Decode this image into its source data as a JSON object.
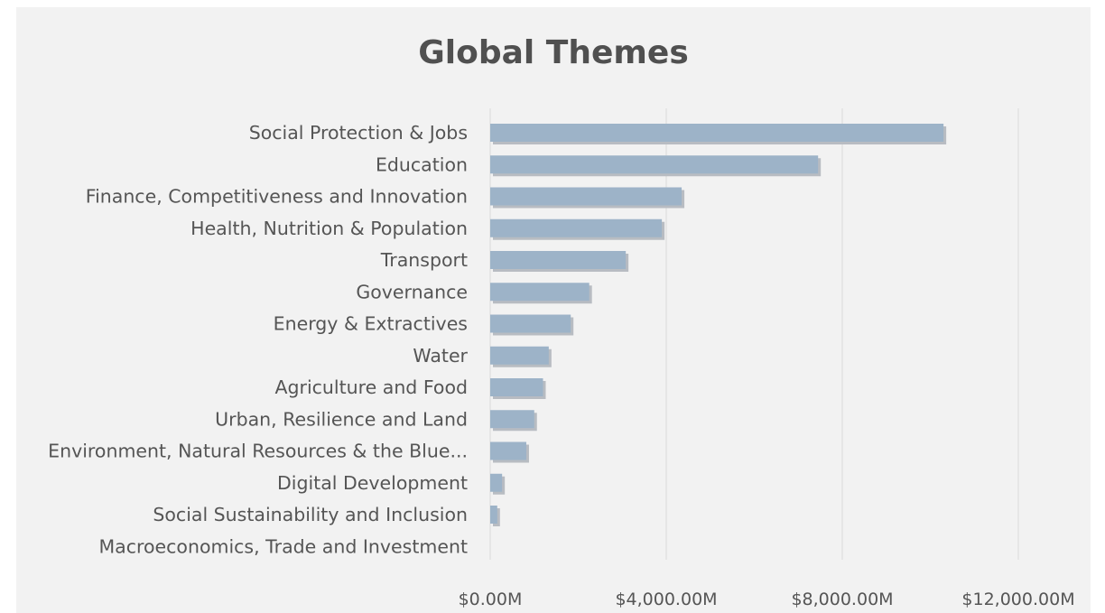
{
  "chart_data": {
    "type": "bar",
    "orientation": "horizontal",
    "title": "Global Themes",
    "xlabel": "",
    "ylabel": "",
    "xlim": [
      0,
      13000
    ],
    "x_ticks": [
      0,
      4000,
      8000,
      12000
    ],
    "x_tick_labels": [
      "$0.00M",
      "$4,000.00M",
      "$8,000.00M",
      "$12,000.00M"
    ],
    "grid": "vertical",
    "legend": "none",
    "bar_color": "#9db3c8",
    "bar_shadow_color": "#b8bcc2",
    "categories": [
      "Social Protection & Jobs",
      "Education",
      "Finance, Competitiveness and Innovation",
      "Health, Nutrition & Population",
      "Transport",
      "Governance",
      "Energy & Extractives",
      "Water",
      "Agriculture and Food",
      "Urban, Resilience and Land",
      "Environment, Natural Resources & the Blue...",
      "Digital Development",
      "Social Sustainability and Inclusion",
      "Macroeconomics, Trade and Investment"
    ],
    "values": [
      10300,
      7450,
      4350,
      3900,
      3080,
      2250,
      1830,
      1330,
      1200,
      1000,
      820,
      270,
      160,
      0
    ]
  }
}
